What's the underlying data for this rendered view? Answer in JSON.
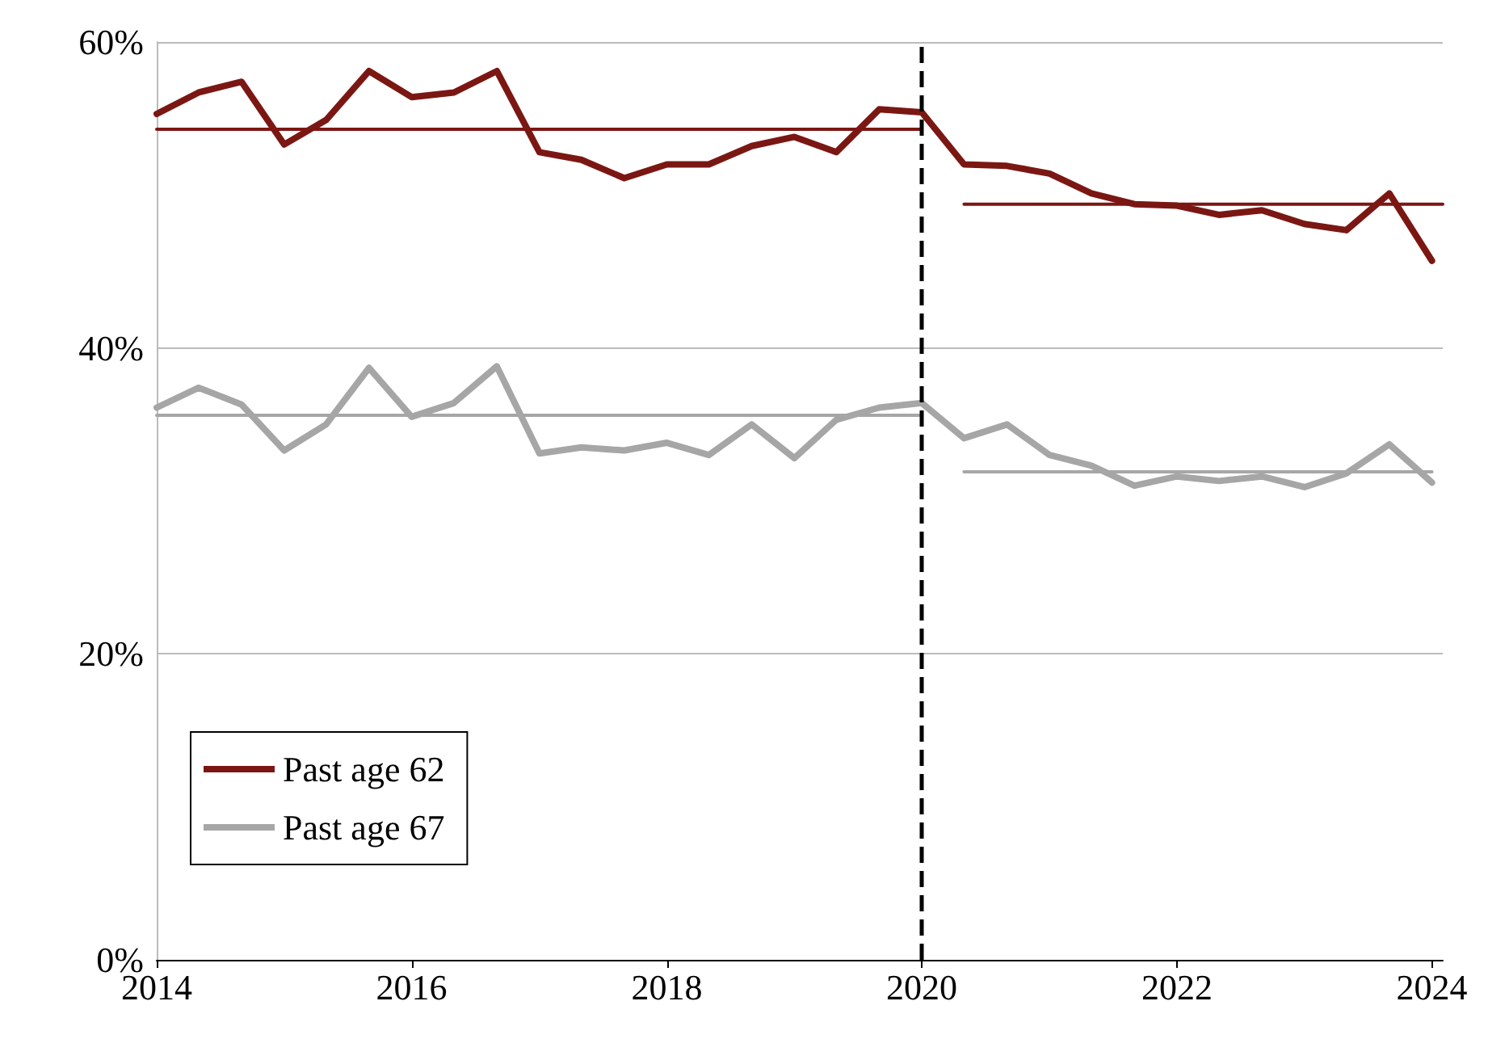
{
  "chart_data": {
    "type": "line",
    "x": [
      "2014-01",
      "2014-05",
      "2014-09",
      "2015-01",
      "2015-05",
      "2015-09",
      "2016-01",
      "2016-05",
      "2016-09",
      "2017-01",
      "2017-05",
      "2017-09",
      "2018-01",
      "2018-05",
      "2018-09",
      "2019-01",
      "2019-05",
      "2019-09",
      "2020-01",
      "2020-05",
      "2020-09",
      "2021-01",
      "2021-05",
      "2021-09",
      "2022-01",
      "2022-05",
      "2022-09",
      "2023-01",
      "2023-05",
      "2023-09",
      "2024-01"
    ],
    "series": [
      {
        "name": "Past age 62",
        "color": "#7b1713",
        "values": [
          55.3,
          56.7,
          57.4,
          53.3,
          54.9,
          58.1,
          56.4,
          56.7,
          58.1,
          52.8,
          52.3,
          51.1,
          52.0,
          52.0,
          53.2,
          53.8,
          52.8,
          55.6,
          55.4,
          52.0,
          51.9,
          51.4,
          50.1,
          49.4,
          49.3,
          48.7,
          49.0,
          48.1,
          47.7,
          50.1,
          45.7
        ]
      },
      {
        "name": "Past age 67",
        "color": "#a6a6a6",
        "values": [
          36.1,
          37.4,
          36.3,
          33.3,
          35.0,
          38.7,
          35.5,
          36.4,
          38.8,
          33.1,
          33.5,
          33.3,
          33.8,
          33.0,
          35.0,
          32.8,
          35.3,
          36.1,
          36.4,
          34.1,
          35.0,
          33.0,
          32.3,
          31.0,
          31.6,
          31.3,
          31.6,
          30.9,
          31.8,
          33.7,
          31.2
        ]
      },
      {
        "type": "line",
        "color": "#7b1713",
        "x": [
          "2014-01",
          "2020-01"
        ],
        "values": [
          54.3,
          54.3
        ]
      },
      {
        "type": "line",
        "color": "#7b1713",
        "x": [
          "2020-05",
          "2024-02"
        ],
        "values": [
          49.4,
          49.4
        ]
      },
      {
        "type": "line",
        "color": "#a6a6a6",
        "x": [
          "2014-01",
          "2020-01"
        ],
        "values": [
          35.6,
          35.6
        ]
      },
      {
        "type": "line",
        "color": "#a6a6a6",
        "x": [
          "2020-05",
          "2024-01"
        ],
        "values": [
          31.9,
          31.9
        ]
      }
    ],
    "xlim": [
      "2014-01",
      "2024-02"
    ],
    "xticks": [
      "2014",
      "2016",
      "2018",
      "2020",
      "2022",
      "2024"
    ],
    "ylim": [
      0,
      60
    ],
    "yticks": [
      {
        "value": 0,
        "label": "0%"
      },
      {
        "value": 20,
        "label": "20%"
      },
      {
        "value": 40,
        "label": "40%"
      },
      {
        "value": 60,
        "label": "60%"
      }
    ],
    "ref_lines": [
      {
        "axis": "x",
        "value": "2020-01",
        "color": "#000000",
        "line_style": "dashed"
      }
    ],
    "grid": "y",
    "legend": "bottom left",
    "marker": "none",
    "line_style": "solid"
  }
}
